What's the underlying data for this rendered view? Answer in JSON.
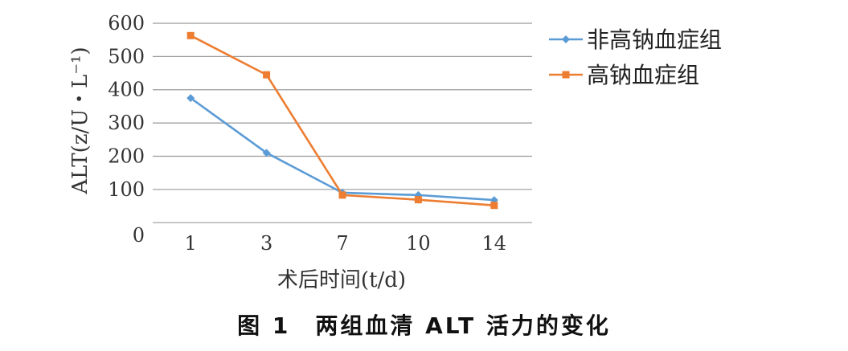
{
  "chart_data": {
    "type": "line",
    "categories": [
      "1",
      "3",
      "7",
      "10",
      "14"
    ],
    "series": [
      {
        "name": "非高钠血症组",
        "values": [
          375,
          210,
          90,
          83,
          68
        ],
        "color": "#5b9bd5",
        "marker": "diamond"
      },
      {
        "name": "高钠血症组",
        "values": [
          563,
          445,
          83,
          69,
          52
        ],
        "color": "#ed7d31",
        "marker": "square"
      }
    ],
    "y_ticks": [
      "600",
      "500",
      "400",
      "300",
      "200",
      "100",
      "0"
    ],
    "xlabel": "术后时间(t/d)",
    "ylabel": "ALT(z/U・L⁻¹)",
    "ylim": [
      0,
      600
    ],
    "grid": true,
    "legend": "right"
  },
  "caption": "图 1　两组血清 ALT 活力的变化"
}
